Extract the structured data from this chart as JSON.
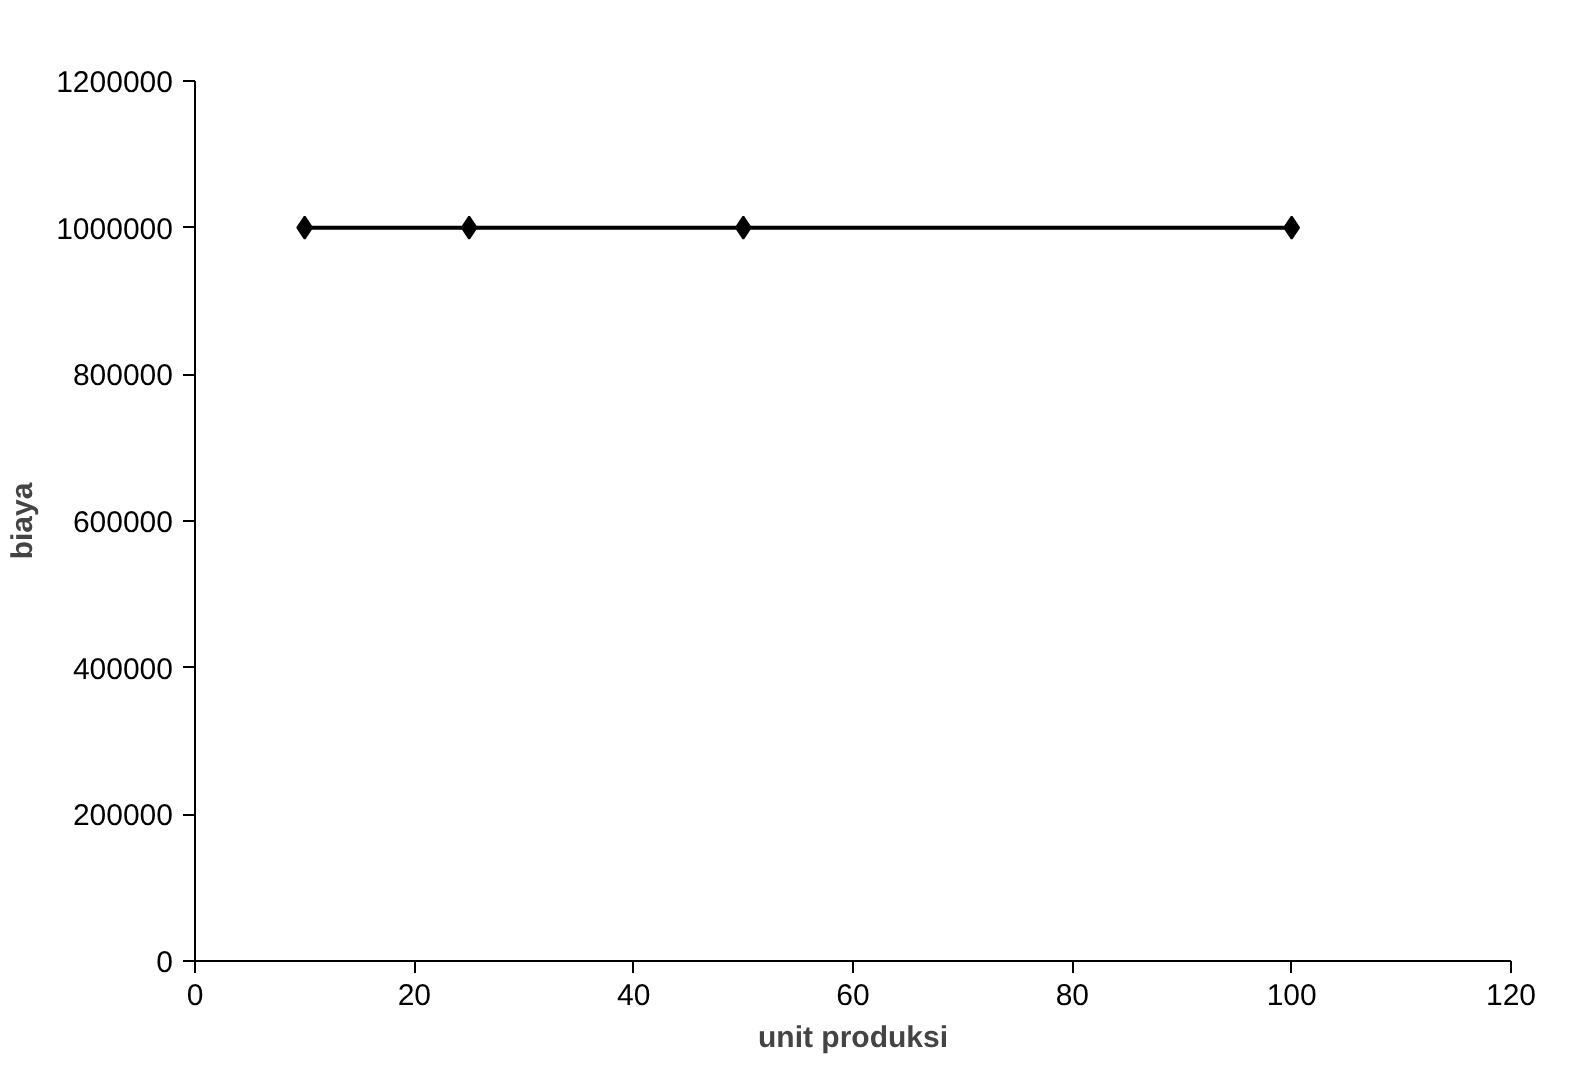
{
  "chart_data": {
    "type": "line",
    "xlabel": "unit produksi",
    "ylabel": "biaya",
    "x": [
      10,
      25,
      50,
      100
    ],
    "series": [
      {
        "color": "#000000",
        "values": [
          1000000,
          1000000,
          1000000,
          1000000
        ]
      }
    ],
    "xlim": [
      0,
      120
    ],
    "xticks": [
      0,
      20,
      40,
      60,
      80,
      100,
      120
    ],
    "ylim": [
      0,
      1200000
    ],
    "yticks": [
      0,
      200000,
      400000,
      600000,
      800000,
      1000000,
      1200000
    ],
    "grid": false,
    "marker": "diamond",
    "line_style": "solid"
  }
}
